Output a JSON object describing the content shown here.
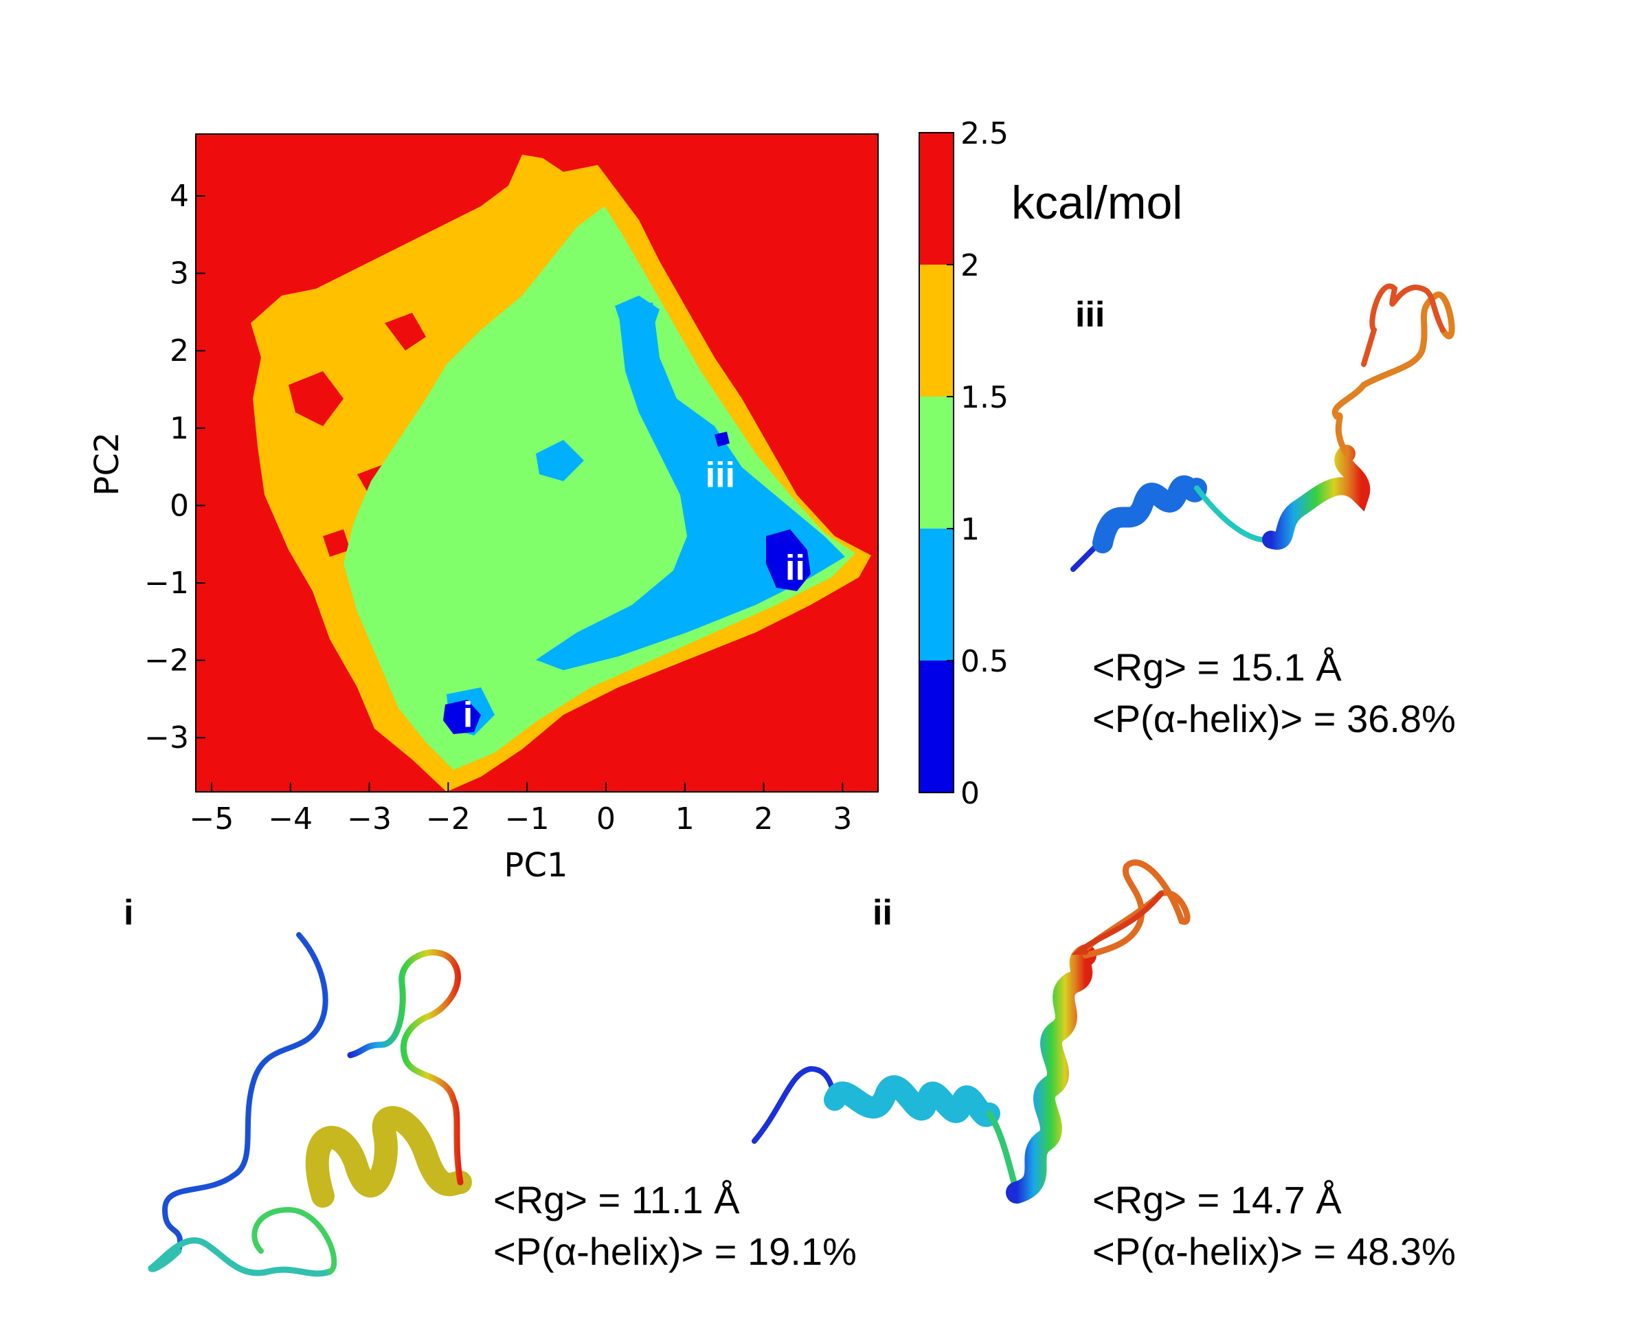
{
  "chart_data": {
    "type": "heatmap",
    "title": "",
    "xlabel": "PC1",
    "ylabel": "PC2",
    "xlim": [
      -5.2,
      3.45
    ],
    "ylim": [
      -3.7,
      4.8
    ],
    "xticks": [
      "−5",
      "−4",
      "−3",
      "−2",
      "−1",
      "0",
      "1",
      "2",
      "3"
    ],
    "yticks": [
      "4",
      "3",
      "2",
      "1",
      "0",
      "−1",
      "−2",
      "−3"
    ],
    "colorbar": {
      "unit": "kcal/mol",
      "levels": [
        0,
        0.5,
        1,
        1.5,
        2,
        2.5
      ],
      "tick_labels": [
        "0",
        "0.5",
        "1",
        "1.5",
        "2",
        "2.5"
      ],
      "colors": [
        "#0000e8",
        "#00b0ff",
        "#80ff6a",
        "#ffc000",
        "#ee0c0c"
      ]
    },
    "states": [
      {
        "label": "i",
        "x": -1.75,
        "y": -2.7
      },
      {
        "label": "ii",
        "x": 2.4,
        "y": -0.8
      },
      {
        "label": "iii",
        "x": 1.45,
        "y": 0.4
      }
    ]
  },
  "panels": [
    {
      "label": "iii",
      "rg": "<Rg> = 15.1 Å",
      "helix": "<P(α-helix)> = 36.8%"
    },
    {
      "label": "i",
      "rg": "<Rg> = 11.1 Å",
      "helix": "<P(α-helix)> = 19.1%"
    },
    {
      "label": "ii",
      "rg": "<Rg> = 14.7 Å",
      "helix": "<P(α-helix)> = 48.3%"
    }
  ],
  "colors": {
    "background": "#ee0c0c",
    "level_0": "#0000e8",
    "level_1": "#00b0ff",
    "level_2": "#80ff6a",
    "level_3": "#ffc000"
  }
}
